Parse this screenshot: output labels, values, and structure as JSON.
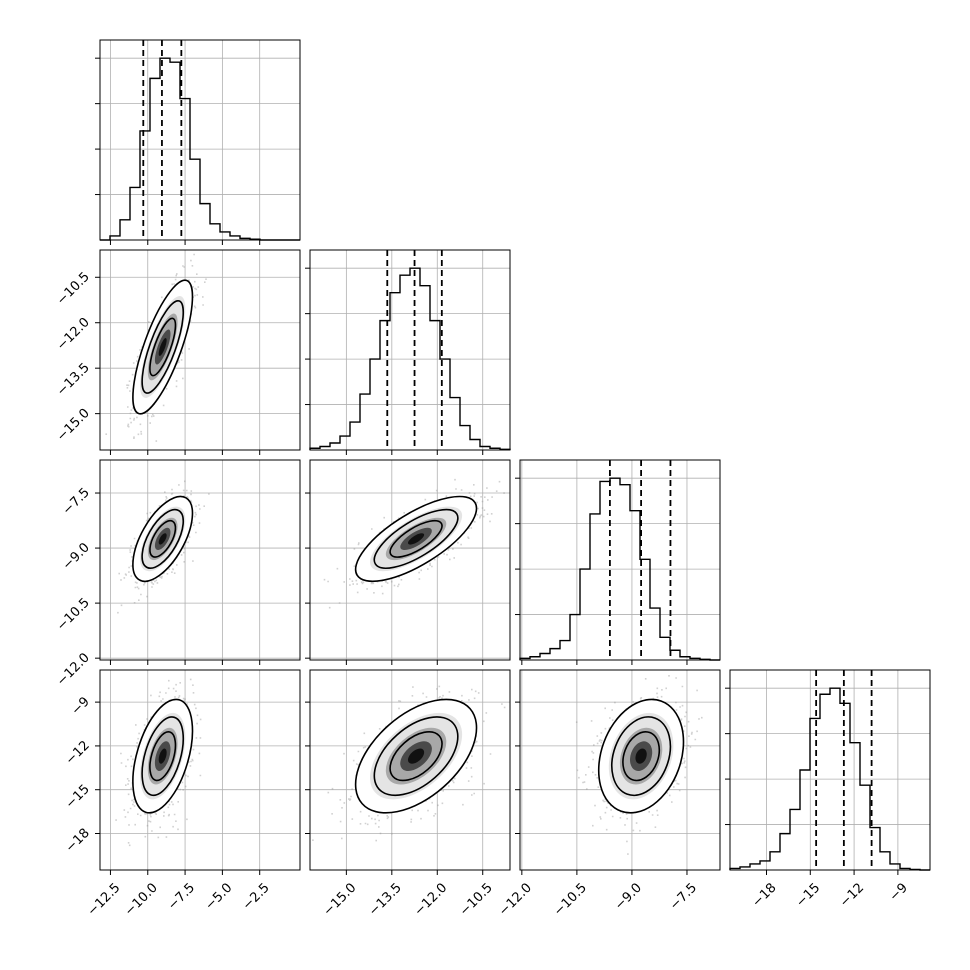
{
  "colors": {
    "ink": "#000000",
    "grid": "#b0b0b0",
    "frame": "#000000"
  },
  "chart_data": {
    "type": "corner",
    "grid": true,
    "parameters": 4,
    "axes": [
      {
        "range": [
          -13.2,
          0.2
        ],
        "ticks": [
          -12.5,
          -10.0,
          -7.5,
          -5.0,
          -2.5
        ],
        "tick_labels": [
          "−12.5",
          "−10.0",
          "−7.5",
          "−5.0",
          "−2.5"
        ]
      },
      {
        "range": [
          -16.2,
          -9.6
        ],
        "ticks": [
          -15.0,
          -13.5,
          -12.0,
          -10.5
        ],
        "tick_labels": [
          "−15.0",
          "−13.5",
          "−12.0",
          "−10.5"
        ]
      },
      {
        "range": [
          -12.05,
          -6.6
        ],
        "ticks": [
          -12.0,
          -10.5,
          -9.0,
          -7.5
        ],
        "tick_labels": [
          "−12.0",
          "−10.5",
          "−9.0",
          "−7.5"
        ]
      },
      {
        "range": [
          -20.5,
          -6.8
        ],
        "ticks": [
          -18,
          -15,
          -12,
          -9
        ],
        "tick_labels": [
          "−18",
          "−15",
          "−12",
          "−9"
        ]
      }
    ],
    "quantiles": [
      [
        -10.3,
        -9.05,
        -7.75
      ],
      [
        -13.65,
        -12.75,
        -11.85
      ],
      [
        -9.6,
        -8.75,
        -7.95
      ],
      [
        -14.6,
        -12.7,
        -10.8
      ]
    ],
    "histograms": [
      {
        "counts": [
          0,
          1,
          5,
          13,
          27,
          40,
          45,
          44,
          35,
          20,
          9,
          4,
          2,
          1,
          0.4,
          0.2,
          0,
          0,
          0,
          0
        ]
      },
      {
        "counts": [
          0.5,
          1,
          2,
          4,
          8,
          16,
          26,
          37,
          45,
          50,
          52,
          47,
          37,
          26,
          15,
          7,
          3,
          1,
          0.5,
          0.2
        ]
      },
      {
        "counts": [
          0.5,
          1,
          2,
          3.5,
          6,
          14,
          28,
          45,
          55,
          56,
          54,
          46,
          31,
          16,
          7,
          3,
          1,
          0.5,
          0.2,
          0
        ]
      },
      {
        "counts": [
          0.5,
          1,
          2,
          3,
          6,
          12,
          20,
          33,
          50,
          58,
          60,
          55,
          42,
          28,
          14,
          6,
          2,
          0.5,
          0.2,
          0
        ]
      }
    ],
    "pairs": [
      {
        "x": 0,
        "y": 1,
        "center": [
          -9.0,
          -12.8
        ],
        "sd": [
          0.95,
          1.05
        ],
        "corr": 0.75
      },
      {
        "x": 0,
        "y": 2,
        "center": [
          -9.0,
          -8.75
        ],
        "sd": [
          0.95,
          0.55
        ],
        "corr": 0.6
      },
      {
        "x": 1,
        "y": 2,
        "center": [
          -12.7,
          -8.75
        ],
        "sd": [
          0.95,
          0.55
        ],
        "corr": 0.72
      },
      {
        "x": 0,
        "y": 3,
        "center": [
          -9.0,
          -12.7
        ],
        "sd": [
          0.95,
          1.85
        ],
        "corr": 0.45
      },
      {
        "x": 1,
        "y": 3,
        "center": [
          -12.7,
          -12.7
        ],
        "sd": [
          0.95,
          1.85
        ],
        "corr": 0.5
      },
      {
        "x": 2,
        "y": 3,
        "center": [
          -8.75,
          -12.7
        ],
        "sd": [
          0.55,
          1.85
        ],
        "corr": 0.25
      }
    ]
  }
}
